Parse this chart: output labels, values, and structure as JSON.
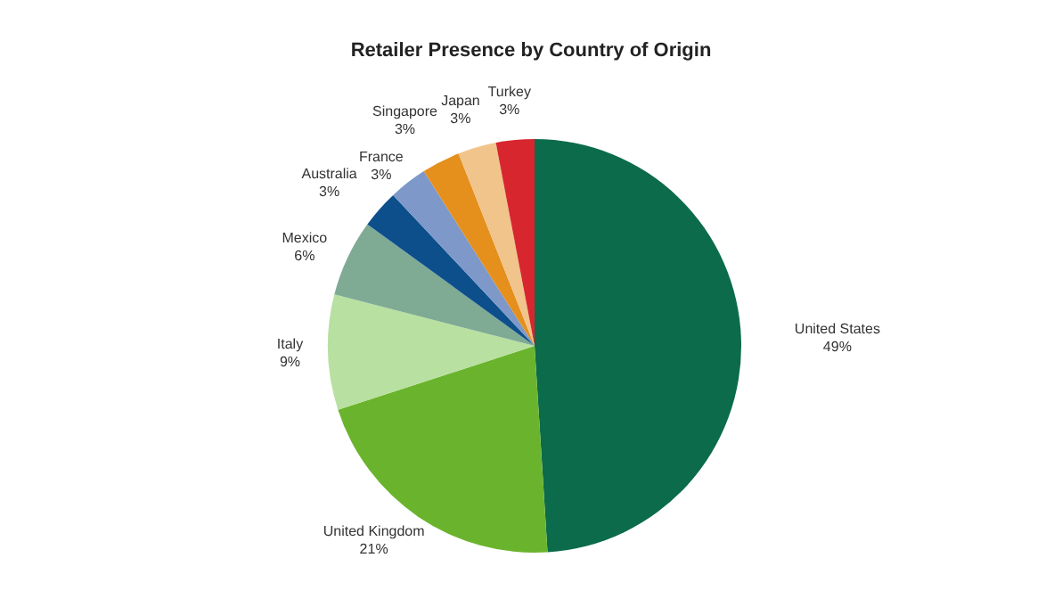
{
  "chart_data": {
    "type": "pie",
    "title": "Retailer Presence by Country of Origin",
    "categories": [
      "United States",
      "United Kingdom",
      "Italy",
      "Mexico",
      "Australia",
      "France",
      "Singapore",
      "Japan",
      "Turkey"
    ],
    "values": [
      49,
      21,
      9,
      6,
      3,
      3,
      3,
      3,
      3
    ],
    "value_labels": [
      "49%",
      "21%",
      "9%",
      "6%",
      "3%",
      "3%",
      "3%",
      "3%",
      "3%"
    ],
    "colors": [
      "#0b6b4a",
      "#6ab42d",
      "#b8e0a0",
      "#7faa94",
      "#0d4f8b",
      "#7d98c9",
      "#e58f1c",
      "#f0c48a",
      "#d7262e"
    ],
    "legend": false
  }
}
